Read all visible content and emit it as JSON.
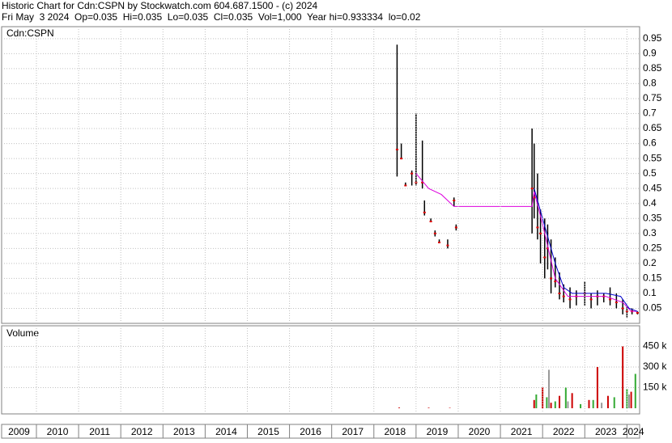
{
  "header": {
    "line1": "Historic Chart for Cdn:CSPN by Stockwatch.com 604.687.1500 - (c) 2024",
    "line2": "Fri May  3 2024  Op=0.035  Hi=0.035  Lo=0.035  Cl=0.035  Vol=1,000  Year hi=0.933334  lo=0.02"
  },
  "chart_data": [
    {
      "type": "price",
      "label": "Cdn:CSPN",
      "xlim": [
        2009.175,
        2024.3
      ],
      "ylim": [
        0,
        0.99
      ],
      "yticks": [
        0.05,
        0.1,
        0.15,
        0.2,
        0.25,
        0.3,
        0.35,
        0.4,
        0.45,
        0.5,
        0.55,
        0.6,
        0.65,
        0.7,
        0.75,
        0.8,
        0.85,
        0.9,
        0.95
      ],
      "x": [
        2018.55,
        2018.65,
        2018.75,
        2018.9,
        2019.0,
        2019.15,
        2019.2,
        2019.35,
        2019.45,
        2019.55,
        2019.75,
        2019.9,
        2019.95,
        2021.75,
        2021.8,
        2021.88,
        2021.95,
        2022.05,
        2022.12,
        2022.2,
        2022.3,
        2022.4,
        2022.5,
        2022.65,
        2022.8,
        2023.0,
        2023.15,
        2023.3,
        2023.45,
        2023.6,
        2023.75,
        2023.9,
        2024.0,
        2024.12,
        2024.25
      ],
      "high": [
        0.93,
        0.6,
        0.47,
        0.51,
        0.7,
        0.61,
        0.41,
        0.35,
        0.31,
        0.28,
        0.28,
        0.42,
        0.33,
        0.65,
        0.6,
        0.5,
        0.38,
        0.35,
        0.33,
        0.28,
        0.22,
        0.17,
        0.13,
        0.12,
        0.11,
        0.14,
        0.1,
        0.11,
        0.1,
        0.12,
        0.1,
        0.08,
        0.06,
        0.05,
        0.04
      ],
      "low": [
        0.49,
        0.55,
        0.46,
        0.46,
        0.46,
        0.45,
        0.36,
        0.34,
        0.29,
        0.27,
        0.25,
        0.39,
        0.31,
        0.3,
        0.35,
        0.28,
        0.2,
        0.15,
        0.18,
        0.1,
        0.12,
        0.08,
        0.07,
        0.05,
        0.06,
        0.06,
        0.05,
        0.06,
        0.07,
        0.06,
        0.05,
        0.03,
        0.02,
        0.03,
        0.03
      ],
      "close": [
        0.58,
        0.55,
        0.46,
        0.5,
        0.47,
        0.47,
        0.37,
        0.34,
        0.3,
        0.27,
        0.26,
        0.41,
        0.32,
        0.45,
        0.42,
        0.32,
        0.3,
        0.22,
        0.25,
        0.15,
        0.14,
        0.1,
        0.09,
        0.08,
        0.09,
        0.1,
        0.08,
        0.09,
        0.09,
        0.08,
        0.07,
        0.05,
        0.04,
        0.04,
        0.035
      ],
      "bar_color": "#000000",
      "close_color": "#dd0000",
      "lines": [
        {
          "color": "#dd00dd",
          "x": [
            2019.0,
            2019.3,
            2019.6,
            2019.9,
            2021.75,
            2021.8,
            2022.0,
            2022.3,
            2022.6,
            2023.0,
            2023.5,
            2023.9,
            2024.1,
            2024.25
          ],
          "values": [
            0.5,
            0.45,
            0.43,
            0.39,
            0.39,
            0.44,
            0.33,
            0.15,
            0.09,
            0.09,
            0.09,
            0.07,
            0.04,
            0.04
          ]
        },
        {
          "color": "#0000cc",
          "x": [
            2021.8,
            2021.9,
            2022.1,
            2022.3,
            2022.5,
            2022.7,
            2023.0,
            2023.5,
            2023.85,
            2024.05,
            2024.25
          ],
          "values": [
            0.45,
            0.4,
            0.3,
            0.2,
            0.12,
            0.1,
            0.1,
            0.1,
            0.09,
            0.05,
            0.04
          ]
        }
      ]
    },
    {
      "type": "volume",
      "label": "Volume",
      "xlim": [
        2009.175,
        2024.3
      ],
      "ylim": [
        0,
        600000
      ],
      "yticks": [
        {
          "value": 150000,
          "label": "150 k"
        },
        {
          "value": 300000,
          "label": "300 k"
        },
        {
          "value": 450000,
          "label": "450 k"
        }
      ],
      "series": [
        {
          "color": "#cc0000",
          "x": [
            2018.6,
            2019.3,
            2019.8,
            2021.8,
            2022.0,
            2022.2,
            2022.4,
            2022.7,
            2023.1,
            2023.3,
            2023.55,
            2023.9,
            2024.1
          ],
          "values": [
            5000,
            4000,
            3000,
            60000,
            150000,
            40000,
            90000,
            110000,
            60000,
            300000,
            90000,
            450000,
            120000
          ]
        },
        {
          "color": "#33aa33",
          "x": [
            2021.85,
            2022.1,
            2022.3,
            2022.55,
            2022.9,
            2023.2,
            2023.7,
            2024.0,
            2024.2
          ],
          "values": [
            100000,
            80000,
            50000,
            150000,
            30000,
            60000,
            80000,
            140000,
            250000
          ]
        },
        {
          "color": "#999999",
          "x": [
            2022.15,
            2022.6,
            2023.4,
            2024.05
          ],
          "values": [
            280000,
            50000,
            40000,
            100000
          ]
        }
      ]
    },
    {
      "type": "year-axis",
      "xlim": [
        2009.175,
        2024.3
      ],
      "xticks": [
        2010,
        2011,
        2012,
        2013,
        2014,
        2015,
        2016,
        2017,
        2018,
        2019,
        2020,
        2021,
        2022,
        2023,
        2024
      ],
      "year_labels": [
        "2009",
        "2010",
        "2011",
        "2012",
        "2013",
        "2014",
        "2015",
        "2016",
        "2017",
        "2018",
        "2019",
        "2020",
        "2021",
        "2022",
        "2023",
        "2024"
      ]
    }
  ]
}
